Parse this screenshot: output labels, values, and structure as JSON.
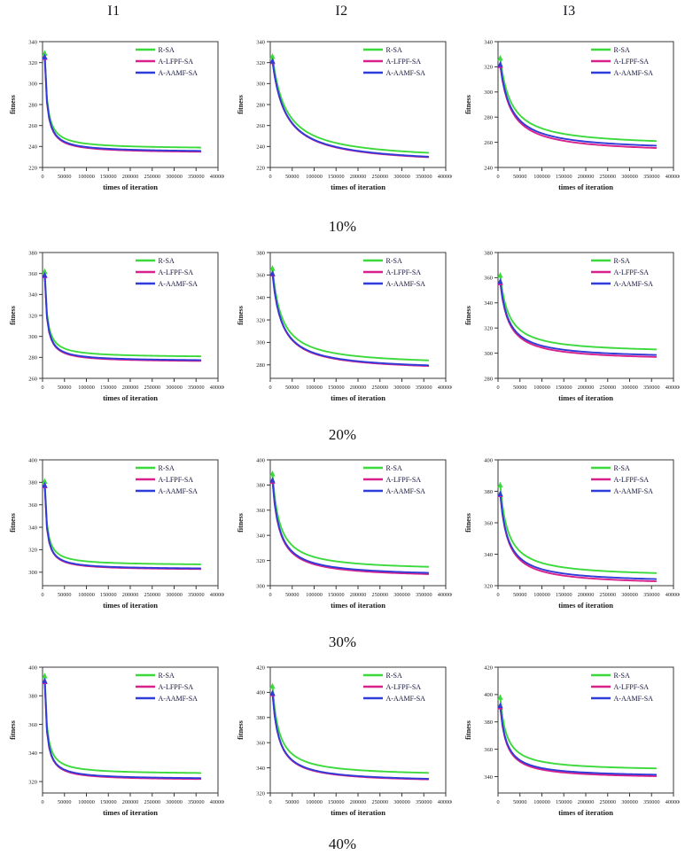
{
  "page": {
    "column_titles": [
      "I1",
      "I2",
      "I3"
    ],
    "row_labels": [
      "10%",
      "20%",
      "30%",
      "40%"
    ]
  },
  "axes": {
    "xlabel": "times of iteration",
    "ylabel": "fitness",
    "x_min": 0,
    "x_max": 400000,
    "x_tick_labels": [
      "0",
      "50000",
      "100000",
      "150000",
      "200000",
      "250000",
      "300000",
      "350000",
      "400000"
    ],
    "data_x_start": 5000,
    "data_x_end": 360000
  },
  "legend": {
    "entries": [
      "R-SA",
      "A-LFPF-SA",
      "A-AAMF-SA"
    ]
  },
  "colors": {
    "r_sa": "#3cd93c",
    "a_lfpf_sa": "#d9218c",
    "a_aamf_sa": "#2f3cd9",
    "axis": "#3a3a3a",
    "tick_text": "#1a1a1a",
    "legend_text": "#14143c"
  },
  "chart_data": [
    {
      "type": "line",
      "title": "I1",
      "group": "10%",
      "y_min": 220,
      "y_max": 340,
      "y_ticks": [
        220,
        240,
        260,
        280,
        300,
        320,
        340
      ],
      "decay": 0.016,
      "series": [
        {
          "name": "R-SA",
          "color": "#3cd93c",
          "start": 329,
          "end": 239
        },
        {
          "name": "A-LFPF-SA",
          "color": "#d9218c",
          "start": 325,
          "end": 235
        },
        {
          "name": "A-AAMF-SA",
          "color": "#2f3cd9",
          "start": 325.5,
          "end": 235.8
        }
      ]
    },
    {
      "type": "line",
      "title": "I2",
      "group": "10%",
      "y_min": 220,
      "y_max": 340,
      "y_ticks": [
        220,
        240,
        260,
        280,
        300,
        320,
        340
      ],
      "decay": 0.085,
      "series": [
        {
          "name": "R-SA",
          "color": "#3cd93c",
          "start": 326,
          "end": 234
        },
        {
          "name": "A-LFPF-SA",
          "color": "#d9218c",
          "start": 321,
          "end": 229.8
        },
        {
          "name": "A-AAMF-SA",
          "color": "#2f3cd9",
          "start": 321.5,
          "end": 230.3
        }
      ]
    },
    {
      "type": "line",
      "title": "I3",
      "group": "10%",
      "y_min": 240,
      "y_max": 340,
      "y_ticks": [
        240,
        260,
        280,
        300,
        320,
        340
      ],
      "decay": 0.07,
      "series": [
        {
          "name": "R-SA",
          "color": "#3cd93c",
          "start": 327,
          "end": 261
        },
        {
          "name": "A-LFPF-SA",
          "color": "#d9218c",
          "start": 321,
          "end": 255.5
        },
        {
          "name": "A-AAMF-SA",
          "color": "#2f3cd9",
          "start": 322,
          "end": 257.3
        }
      ]
    },
    {
      "type": "line",
      "title": "I1",
      "group": "20%",
      "y_min": 260,
      "y_max": 380,
      "y_ticks": [
        260,
        280,
        300,
        320,
        340,
        360,
        380
      ],
      "decay": 0.015,
      "series": [
        {
          "name": "R-SA",
          "color": "#3cd93c",
          "start": 362,
          "end": 281
        },
        {
          "name": "A-LFPF-SA",
          "color": "#d9218c",
          "start": 358,
          "end": 276.6
        },
        {
          "name": "A-AAMF-SA",
          "color": "#2f3cd9",
          "start": 358.5,
          "end": 277.4
        }
      ]
    },
    {
      "type": "line",
      "title": "I2",
      "group": "20%",
      "y_min": 268,
      "y_max": 380,
      "y_ticks": [
        280,
        300,
        320,
        340,
        360,
        380
      ],
      "decay": 0.06,
      "series": [
        {
          "name": "R-SA",
          "color": "#3cd93c",
          "start": 366,
          "end": 284
        },
        {
          "name": "A-LFPF-SA",
          "color": "#d9218c",
          "start": 361,
          "end": 279
        },
        {
          "name": "A-AAMF-SA",
          "color": "#2f3cd9",
          "start": 361.5,
          "end": 279.6
        }
      ]
    },
    {
      "type": "line",
      "title": "I3",
      "group": "20%",
      "y_min": 280,
      "y_max": 380,
      "y_ticks": [
        280,
        300,
        320,
        340,
        360,
        380
      ],
      "decay": 0.055,
      "series": [
        {
          "name": "R-SA",
          "color": "#3cd93c",
          "start": 362,
          "end": 303
        },
        {
          "name": "A-LFPF-SA",
          "color": "#d9218c",
          "start": 356,
          "end": 297
        },
        {
          "name": "A-AAMF-SA",
          "color": "#2f3cd9",
          "start": 357,
          "end": 298.6
        }
      ]
    },
    {
      "type": "line",
      "title": "I1",
      "group": "30%",
      "y_min": 288,
      "y_max": 400,
      "y_ticks": [
        300,
        320,
        340,
        360,
        380,
        400
      ],
      "decay": 0.014,
      "series": [
        {
          "name": "R-SA",
          "color": "#3cd93c",
          "start": 381,
          "end": 307
        },
        {
          "name": "A-LFPF-SA",
          "color": "#d9218c",
          "start": 377,
          "end": 302.8
        },
        {
          "name": "A-AAMF-SA",
          "color": "#2f3cd9",
          "start": 377.5,
          "end": 303.4
        }
      ]
    },
    {
      "type": "line",
      "title": "I2",
      "group": "30%",
      "y_min": 300,
      "y_max": 400,
      "y_ticks": [
        300,
        320,
        340,
        360,
        380,
        400
      ],
      "decay": 0.045,
      "series": [
        {
          "name": "R-SA",
          "color": "#3cd93c",
          "start": 389,
          "end": 315
        },
        {
          "name": "A-LFPF-SA",
          "color": "#d9218c",
          "start": 383,
          "end": 309.2
        },
        {
          "name": "A-AAMF-SA",
          "color": "#2f3cd9",
          "start": 384,
          "end": 310.2
        }
      ]
    },
    {
      "type": "line",
      "title": "I3",
      "group": "30%",
      "y_min": 320,
      "y_max": 400,
      "y_ticks": [
        320,
        340,
        360,
        380,
        400
      ],
      "decay": 0.05,
      "series": [
        {
          "name": "R-SA",
          "color": "#3cd93c",
          "start": 384,
          "end": 328
        },
        {
          "name": "A-LFPF-SA",
          "color": "#d9218c",
          "start": 378,
          "end": 322.8
        },
        {
          "name": "A-AAMF-SA",
          "color": "#2f3cd9",
          "start": 378.5,
          "end": 324.2
        }
      ]
    },
    {
      "type": "line",
      "title": "I1",
      "group": "40%",
      "y_min": 312,
      "y_max": 400,
      "y_ticks": [
        320,
        340,
        360,
        380,
        400
      ],
      "decay": 0.014,
      "series": [
        {
          "name": "R-SA",
          "color": "#3cd93c",
          "start": 394,
          "end": 326
        },
        {
          "name": "A-LFPF-SA",
          "color": "#d9218c",
          "start": 390,
          "end": 321.8
        },
        {
          "name": "A-AAMF-SA",
          "color": "#2f3cd9",
          "start": 390.5,
          "end": 322.4
        }
      ]
    },
    {
      "type": "line",
      "title": "I2",
      "group": "40%",
      "y_min": 320,
      "y_max": 420,
      "y_ticks": [
        320,
        340,
        360,
        380,
        400,
        420
      ],
      "decay": 0.042,
      "series": [
        {
          "name": "R-SA",
          "color": "#3cd93c",
          "start": 405,
          "end": 336
        },
        {
          "name": "A-LFPF-SA",
          "color": "#d9218c",
          "start": 399,
          "end": 330.8
        },
        {
          "name": "A-AAMF-SA",
          "color": "#2f3cd9",
          "start": 399.5,
          "end": 331.3
        }
      ]
    },
    {
      "type": "line",
      "title": "I3",
      "group": "40%",
      "y_min": 328,
      "y_max": 420,
      "y_ticks": [
        340,
        360,
        380,
        400,
        420
      ],
      "decay": 0.04,
      "series": [
        {
          "name": "R-SA",
          "color": "#3cd93c",
          "start": 398,
          "end": 346
        },
        {
          "name": "A-LFPF-SA",
          "color": "#d9218c",
          "start": 391,
          "end": 340.3
        },
        {
          "name": "A-AAMF-SA",
          "color": "#2f3cd9",
          "start": 392,
          "end": 341.4
        }
      ]
    }
  ]
}
